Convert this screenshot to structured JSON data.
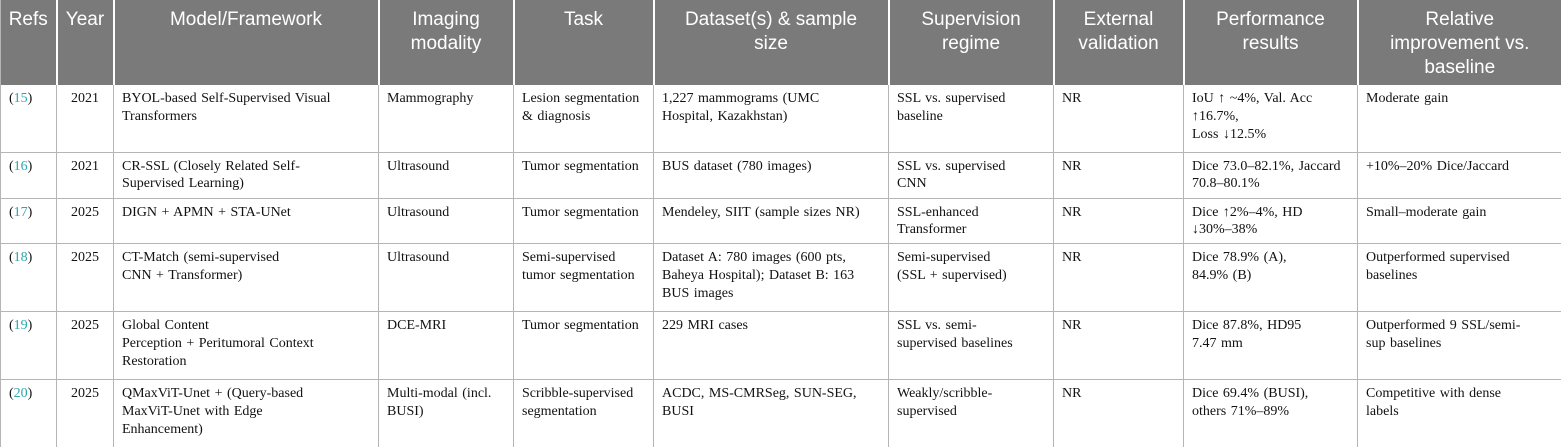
{
  "colors": {
    "header_bg": "#7a7a7a",
    "header_text": "#ffffff",
    "ref_link": "#2aa6ad"
  },
  "table": {
    "columns": [
      {
        "key": "ref",
        "label": "Refs"
      },
      {
        "key": "year",
        "label": "Year"
      },
      {
        "key": "model",
        "label": "Model/Framework"
      },
      {
        "key": "modality",
        "label": "Imaging\nmodality"
      },
      {
        "key": "task",
        "label": "Task"
      },
      {
        "key": "dataset",
        "label": "Dataset(s) & sample\nsize"
      },
      {
        "key": "supervision",
        "label": "Supervision\nregime"
      },
      {
        "key": "external",
        "label": "External\nvalidation"
      },
      {
        "key": "performance",
        "label": "Performance\nresults"
      },
      {
        "key": "improvement",
        "label": "Relative\nimprovement vs.\nbaseline"
      }
    ],
    "rows": [
      {
        "ref": [
          "(",
          "15",
          ")"
        ],
        "year": "2021",
        "model": "BYOL-based Self-Supervised Visual\nTransformers",
        "modality": "Mammography",
        "task": "Lesion segmentation\n& diagnosis",
        "dataset": "1,227 mammograms (UMC\nHospital, Kazakhstan)",
        "supervision": "SSL vs. supervised\nbaseline",
        "external": "NR",
        "performance": "IoU ↑ ~4%, Val. Acc\n↑16.7%,\nLoss ↓12.5%",
        "improvement": "Moderate gain"
      },
      {
        "ref": [
          "(",
          "16",
          ")"
        ],
        "year": "2021",
        "model": "CR-SSL (Closely Related Self-\nSupervised Learning)",
        "modality": "Ultrasound",
        "task": "Tumor segmentation",
        "dataset": "BUS dataset (780 images)",
        "supervision": "SSL vs. supervised\nCNN",
        "external": "NR",
        "performance": "Dice 73.0–82.1%, Jaccard\n70.8–80.1%",
        "improvement": "+10%–20% Dice/Jaccard"
      },
      {
        "ref": [
          "(",
          "17",
          ")"
        ],
        "year": "2025",
        "model": "DIGN + APMN + STA-UNet",
        "modality": "Ultrasound",
        "task": "Tumor segmentation",
        "dataset": "Mendeley, SIIT (sample sizes NR)",
        "supervision": "SSL-enhanced\nTransformer",
        "external": "NR",
        "performance": "Dice ↑2%–4%, HD\n↓30%–38%",
        "improvement": "Small–moderate gain"
      },
      {
        "ref": [
          "(",
          "18",
          ")"
        ],
        "year": "2025",
        "model": "CT-Match (semi-supervised\nCNN + Transformer)",
        "modality": "Ultrasound",
        "task": "Semi-supervised\ntumor segmentation",
        "dataset": "Dataset A: 780 images (600 pts,\nBaheya Hospital); Dataset B: 163\nBUS images",
        "supervision": "Semi-supervised\n(SSL + supervised)",
        "external": "NR",
        "performance": "Dice 78.9% (A),\n84.9% (B)",
        "improvement": "Outperformed supervised\nbaselines"
      },
      {
        "ref": [
          "(",
          "19",
          ")"
        ],
        "year": "2025",
        "model": "Global Content\nPerception + Peritumoral Context\nRestoration",
        "modality": "DCE-MRI",
        "task": "Tumor segmentation",
        "dataset": "229 MRI cases",
        "supervision": "SSL vs. semi-\nsupervised baselines",
        "external": "NR",
        "performance": "Dice 87.8%, HD95\n7.47 mm",
        "improvement": "Outperformed 9 SSL/semi-\nsup baselines"
      },
      {
        "ref": [
          "(",
          "20",
          ")"
        ],
        "year": "2025",
        "model": "QMaxViT-Unet + (Query-based\nMaxViT-Unet with Edge\nEnhancement)",
        "modality": "Multi-modal (incl.\nBUSI)",
        "task": "Scribble-supervised\nsegmentation",
        "dataset": "ACDC, MS-CMRSeg, SUN-SEG,\nBUSI",
        "supervision": "Weakly/scribble-\nsupervised",
        "external": "NR",
        "performance": "Dice 69.4% (BUSI),\nothers 71%–89%",
        "improvement": "Competitive with dense\nlabels"
      }
    ]
  }
}
